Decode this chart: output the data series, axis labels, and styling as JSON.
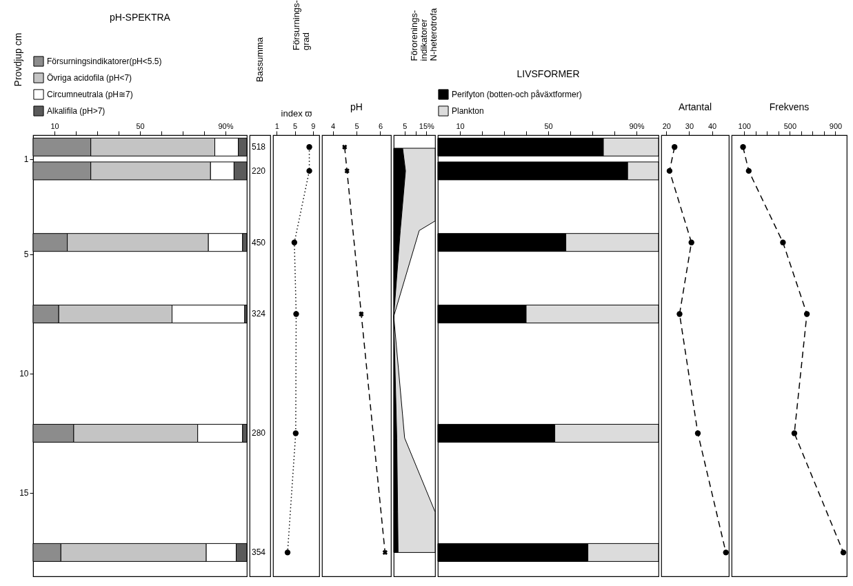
{
  "chart_data": [
    {
      "type": "bar",
      "orientation": "horizontal",
      "stacked": true,
      "title": "pH-SPEKTRA",
      "ylabel": "Provdjup cm",
      "legend": "top",
      "x": [
        0.5,
        1.5,
        4.5,
        7.5,
        12.5,
        17.5
      ],
      "xlim": [
        0,
        100
      ],
      "xticks": [
        10,
        {
          "value": 20,
          "label": null
        },
        {
          "value": 30,
          "label": null
        },
        {
          "value": 40,
          "label": null
        },
        50,
        {
          "value": 60,
          "label": null
        },
        {
          "value": 70,
          "label": null
        },
        {
          "value": 80,
          "label": null
        },
        {
          "value": 90,
          "label": "90%"
        }
      ],
      "ylim": [
        18.5,
        0
      ],
      "yticks": [
        1,
        5,
        10,
        15
      ],
      "series": [
        {
          "name": "Försurningsindikatorer(pH<5.5)",
          "color": "#8c8c8c",
          "values": [
            27,
            27,
            16,
            12,
            19,
            13
          ]
        },
        {
          "name": "Övriga acidofila (pH<7)",
          "color": "#c4c4c4",
          "values": [
            58,
            56,
            66,
            53,
            58,
            68
          ]
        },
        {
          "name": "Circumneutrala (pH≅7)",
          "color": "#ffffff",
          "values": [
            11,
            11,
            16,
            34,
            21,
            14
          ]
        },
        {
          "name": "Alkalifila (pH>7)",
          "color": "#5a5a5a",
          "values": [
            4,
            6,
            2,
            1,
            2,
            5
          ]
        }
      ],
      "annotations": [
        "Bassumma",
        "518",
        "220",
        "450",
        "324",
        "280",
        "354"
      ]
    },
    {
      "type": "line",
      "title": "Försurnings-\ngrad",
      "xlabel": "index ϖ",
      "x": [
        8.2,
        8.2,
        4.9,
        5.3,
        5.2,
        3.4
      ],
      "values": [
        0.5,
        1.5,
        4.5,
        7.5,
        12.5,
        17.5
      ],
      "color": "#000000",
      "marker": "circle",
      "line_style": "dotted",
      "xlim": [
        0.2,
        10.4
      ],
      "xticks": [
        1,
        5,
        9
      ],
      "ylim": [
        18.5,
        0
      ],
      "tick_labels": "x"
    },
    {
      "type": "line",
      "title": "pH",
      "x": [
        4.5,
        4.6,
        5.2,
        6.2
      ],
      "values": [
        0.5,
        1.5,
        7.5,
        17.5
      ],
      "color": "#000000",
      "marker": "cross",
      "line_style": "dashed",
      "xlim": [
        3.55,
        6.45
      ],
      "xticks": [
        4,
        5,
        6
      ],
      "ylim": [
        18.5,
        0
      ],
      "tick_labels": "x"
    },
    {
      "type": "area",
      "orientation": "horizontal",
      "stacked": true,
      "title": "Förorenings-\nindikatorer\nN-heterotrofa",
      "x": [
        0.55,
        1.5,
        3.6,
        4.0,
        7.6,
        12.7,
        15.8,
        17.5
      ],
      "xlim": [
        0,
        19
      ],
      "xticks": [
        5,
        {
          "value": 10,
          "label": null
        },
        {
          "value": 15,
          "label": "15%"
        }
      ],
      "ylim": [
        18.5,
        0
      ],
      "tick_labels": "x",
      "series": [
        {
          "color": "#000000",
          "values": [
            4.1,
            5.4,
            3.4,
            3.0,
            0,
            1.4,
            1.8,
            2.0
          ]
        },
        {
          "color": "#dcdcdc",
          "values": [
            14.9,
            13.6,
            15.6,
            8.7,
            0,
            3.6,
            17.2,
            17
          ]
        }
      ]
    },
    {
      "type": "bar",
      "orientation": "horizontal",
      "stacked": true,
      "title": "LIVSFORMER",
      "legend": "top",
      "x": [
        0.5,
        1.5,
        4.5,
        7.5,
        12.5,
        17.5
      ],
      "xlim": [
        0,
        100
      ],
      "xticks": [
        10,
        {
          "value": 20,
          "label": null
        },
        {
          "value": 30,
          "label": null
        },
        {
          "value": 40,
          "label": null
        },
        50,
        {
          "value": 60,
          "label": null
        },
        {
          "value": 70,
          "label": null
        },
        {
          "value": 80,
          "label": null
        },
        {
          "value": 90,
          "label": "90%"
        }
      ],
      "ylim": [
        18.5,
        0
      ],
      "tick_labels": "x",
      "series": [
        {
          "name": "Perifyton (botten-och påväxtformer)",
          "color": "#000000",
          "values": [
            75,
            86,
            58,
            40,
            53,
            68
          ]
        },
        {
          "name": "Plankton",
          "color": "#dcdcdc",
          "values": [
            25,
            14,
            42,
            60,
            47,
            32
          ]
        }
      ]
    },
    {
      "type": "line",
      "title": "Artantal",
      "x": [
        23.6,
        21.4,
        31,
        25.8,
        33.8,
        46.1
      ],
      "values": [
        0.5,
        1.5,
        4.5,
        7.5,
        12.5,
        17.5
      ],
      "color": "#000000",
      "marker": "circle",
      "line_style": "dashed",
      "xlim": [
        17.8,
        47.4
      ],
      "xticks": [
        20,
        30,
        40
      ],
      "ylim": [
        18.5,
        0
      ],
      "tick_labels": "x"
    },
    {
      "type": "line",
      "title": "Frekvens",
      "x": [
        90,
        140,
        440,
        650,
        540,
        970
      ],
      "values": [
        0.5,
        1.5,
        4.5,
        7.5,
        12.5,
        17.5
      ],
      "color": "#000000",
      "marker": "circle",
      "line_style": "dashed",
      "xlim": [
        -10,
        1000
      ],
      "xticks": [
        100,
        {
          "value": 200,
          "label": null
        },
        {
          "value": 300,
          "label": null
        },
        {
          "value": 400,
          "label": null
        },
        500,
        {
          "value": 600,
          "label": null
        },
        {
          "value": 700,
          "label": null
        },
        {
          "value": 800,
          "label": null
        },
        900
      ],
      "ylim": [
        18.5,
        0
      ],
      "tick_labels": "x"
    }
  ]
}
